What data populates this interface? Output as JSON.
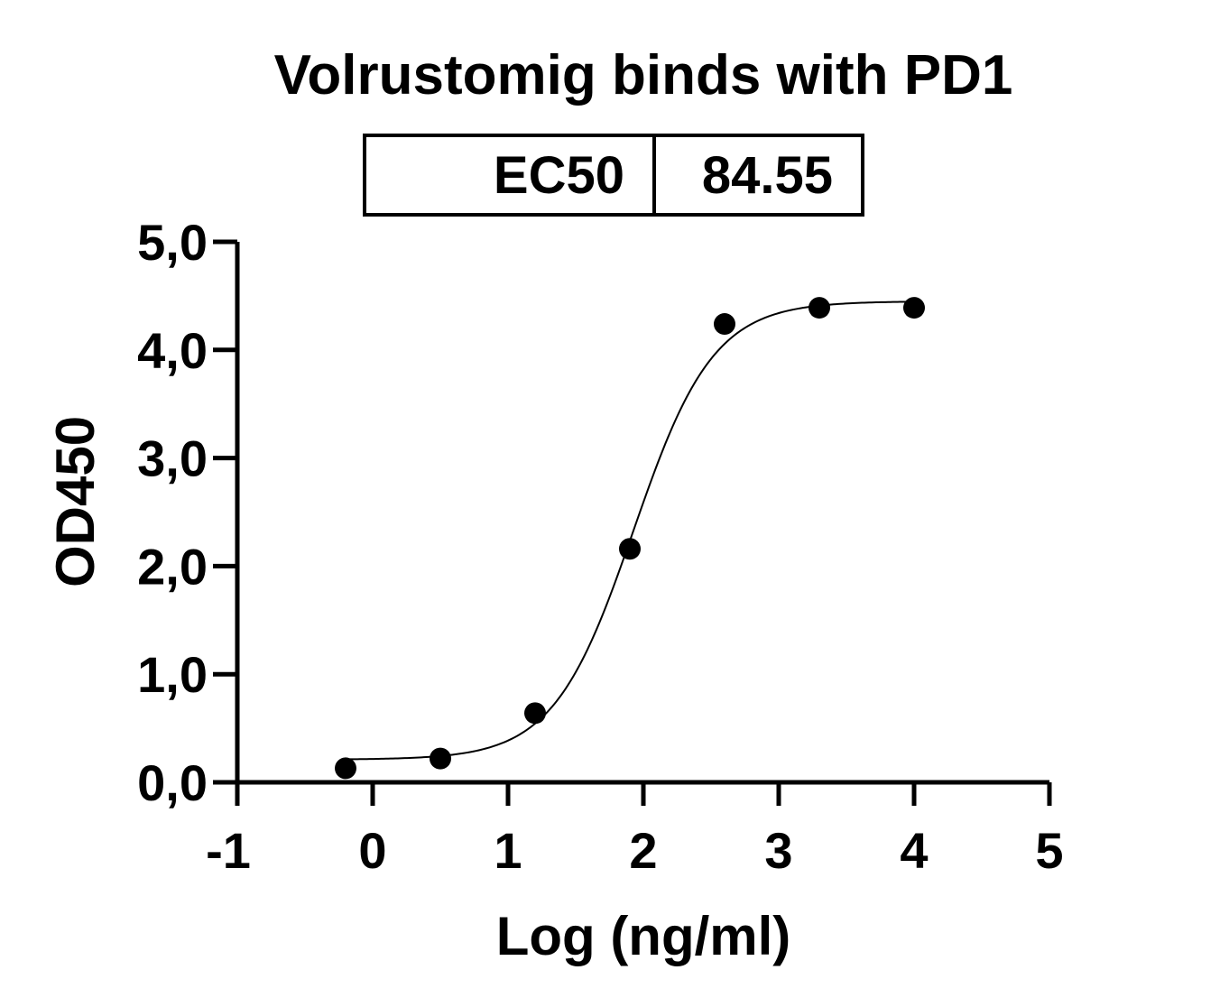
{
  "chart_data": {
    "type": "scatter",
    "title": "Volrustomig binds with PD1",
    "xlabel": "Log (ng/ml)",
    "ylabel": "OD450",
    "xlim": [
      -1,
      5
    ],
    "ylim": [
      0,
      5
    ],
    "x_ticks": [
      "-1",
      "0",
      "1",
      "2",
      "3",
      "4",
      "5"
    ],
    "y_ticks": [
      "0,0",
      "1,0",
      "2,0",
      "3,0",
      "4,0",
      "5,0"
    ],
    "legend_table": {
      "label": "EC50",
      "value": "84.55"
    },
    "points": [
      {
        "x": -0.2,
        "y": 0.13
      },
      {
        "x": 0.5,
        "y": 0.22
      },
      {
        "x": 1.2,
        "y": 0.64
      },
      {
        "x": 1.9,
        "y": 2.16
      },
      {
        "x": 2.6,
        "y": 4.24
      },
      {
        "x": 3.3,
        "y": 4.39
      },
      {
        "x": 4.0,
        "y": 4.39
      }
    ],
    "fit_curve": {
      "model": "4PL",
      "bottom": 0.21,
      "top": 4.45,
      "log_ec50": 1.927,
      "hill_slope": 1.47,
      "x_range": [
        -0.2,
        4.0
      ]
    },
    "grid": false,
    "legend_position": "top"
  }
}
